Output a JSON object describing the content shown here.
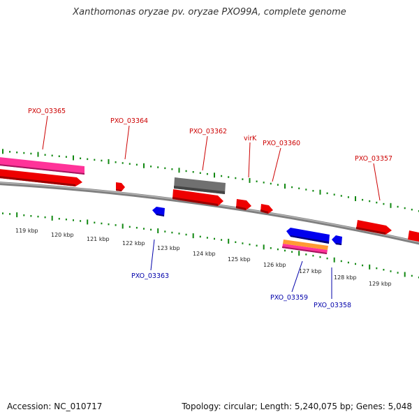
{
  "title": "Xanthomonas oryzae pv. oryzae PXO99A, complete genome",
  "footer": {
    "accession": "Accession: NC_010717",
    "summary": "Topology: circular; Length: 5,240,075 bp; Genes: 5,048"
  },
  "colors": {
    "forward_label": "#cc0000",
    "reverse_label": "#0000aa",
    "tick": "#118811",
    "backbone": "#808080",
    "cds_red": "#ee0000",
    "cds_blue": "#0000ee",
    "cds_pink": "#ff3399",
    "cds_gray": "#707070",
    "cds_orange": "#ff9933"
  },
  "scale_labels": [
    "119 kbp",
    "120 kbp",
    "121 kbp",
    "122 kbp",
    "123 kbp",
    "124 kbp",
    "125 kbp",
    "126 kbp",
    "127 kbp",
    "128 kbp",
    "129 kbp"
  ],
  "gene_labels_forward": [
    "PXO_03365",
    "PXO_03364",
    "PXO_03362",
    "virK",
    "PXO_03360",
    "PXO_03357"
  ],
  "gene_labels_reverse": [
    "PXO_03363",
    "PXO_03359",
    "PXO_03358"
  ]
}
